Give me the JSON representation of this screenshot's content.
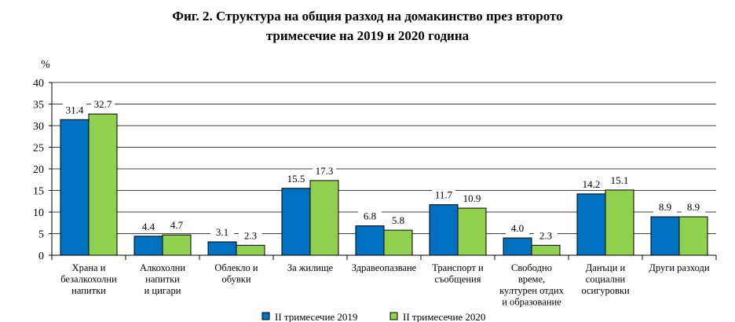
{
  "title_line1": "Фиг. 2. Структура на общия разход на домакинство през второто",
  "title_line2": "тримесечие на 2019 и 2020 година",
  "chart_data": {
    "type": "bar",
    "title": "Фиг. 2. Структура на общия разход на домакинство през второто тримесечие на 2019 и 2020 година",
    "ylabel": "%",
    "ylim": [
      0,
      40
    ],
    "yticks": [
      0,
      5,
      10,
      15,
      20,
      25,
      30,
      35,
      40
    ],
    "grid": true,
    "legend_position": "bottom",
    "categories": [
      [
        "Храна и",
        "безалкохолни",
        "напитки"
      ],
      [
        "Алкохолни",
        "напитки",
        "и цигари"
      ],
      [
        "Облекло и",
        "обувки"
      ],
      [
        "За жилище"
      ],
      [
        "Здравеопазване"
      ],
      [
        "Транспорт и",
        "съобщения"
      ],
      [
        "Свободно",
        "време,",
        "културен отдих",
        "и образование"
      ],
      [
        "Данъци и",
        "социални",
        "осигуровки"
      ],
      [
        "Други разходи"
      ]
    ],
    "series": [
      {
        "name": "II  тримесечие 2019",
        "color": "#0070c0",
        "values": [
          31.4,
          4.4,
          3.1,
          15.5,
          6.8,
          11.7,
          4.0,
          14.2,
          8.9
        ]
      },
      {
        "name": "II  тримесечие 2020",
        "color": "#92d050",
        "values": [
          32.7,
          4.7,
          2.3,
          17.3,
          5.8,
          10.9,
          2.3,
          15.1,
          8.9
        ]
      }
    ]
  }
}
